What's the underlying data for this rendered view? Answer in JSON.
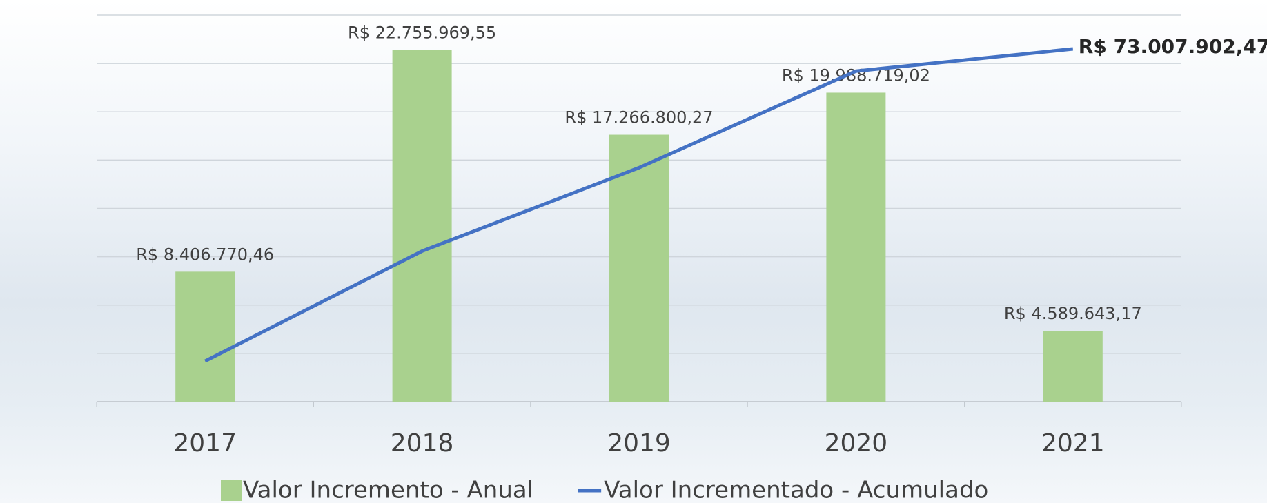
{
  "chart_data": {
    "type": "bar-line",
    "categories": [
      "2017",
      "2018",
      "2019",
      "2020",
      "2021"
    ],
    "series": [
      {
        "name": "Valor Incremento - Anual",
        "type": "bar",
        "color": "#a9d18e",
        "values": [
          8406770.46,
          22755969.55,
          17266800.27,
          19988719.02,
          4589643.17
        ],
        "value_labels": [
          "R$ 8.406.770,46",
          "R$ 22.755.969,55",
          "R$ 17.266.800,27",
          "R$ 19.988.719,02",
          "R$ 4.589.643,17"
        ]
      },
      {
        "name": "Valor Incrementado - Acumulado",
        "type": "line",
        "axis": "y2",
        "color": "#4472c4",
        "values": [
          8406770.46,
          31162740.01,
          48429540.28,
          68418259.3,
          73007902.47
        ],
        "value_labels": [
          null,
          null,
          null,
          null,
          "R$ 73.007.902,47"
        ]
      }
    ],
    "ylim": [
      0,
      25000000
    ],
    "yticks": [
      0,
      3125000,
      6250000,
      9375000,
      12500000,
      15625000,
      18750000,
      21875000,
      25000000
    ],
    "y2lim": [
      0,
      80000000
    ],
    "grid": true
  }
}
